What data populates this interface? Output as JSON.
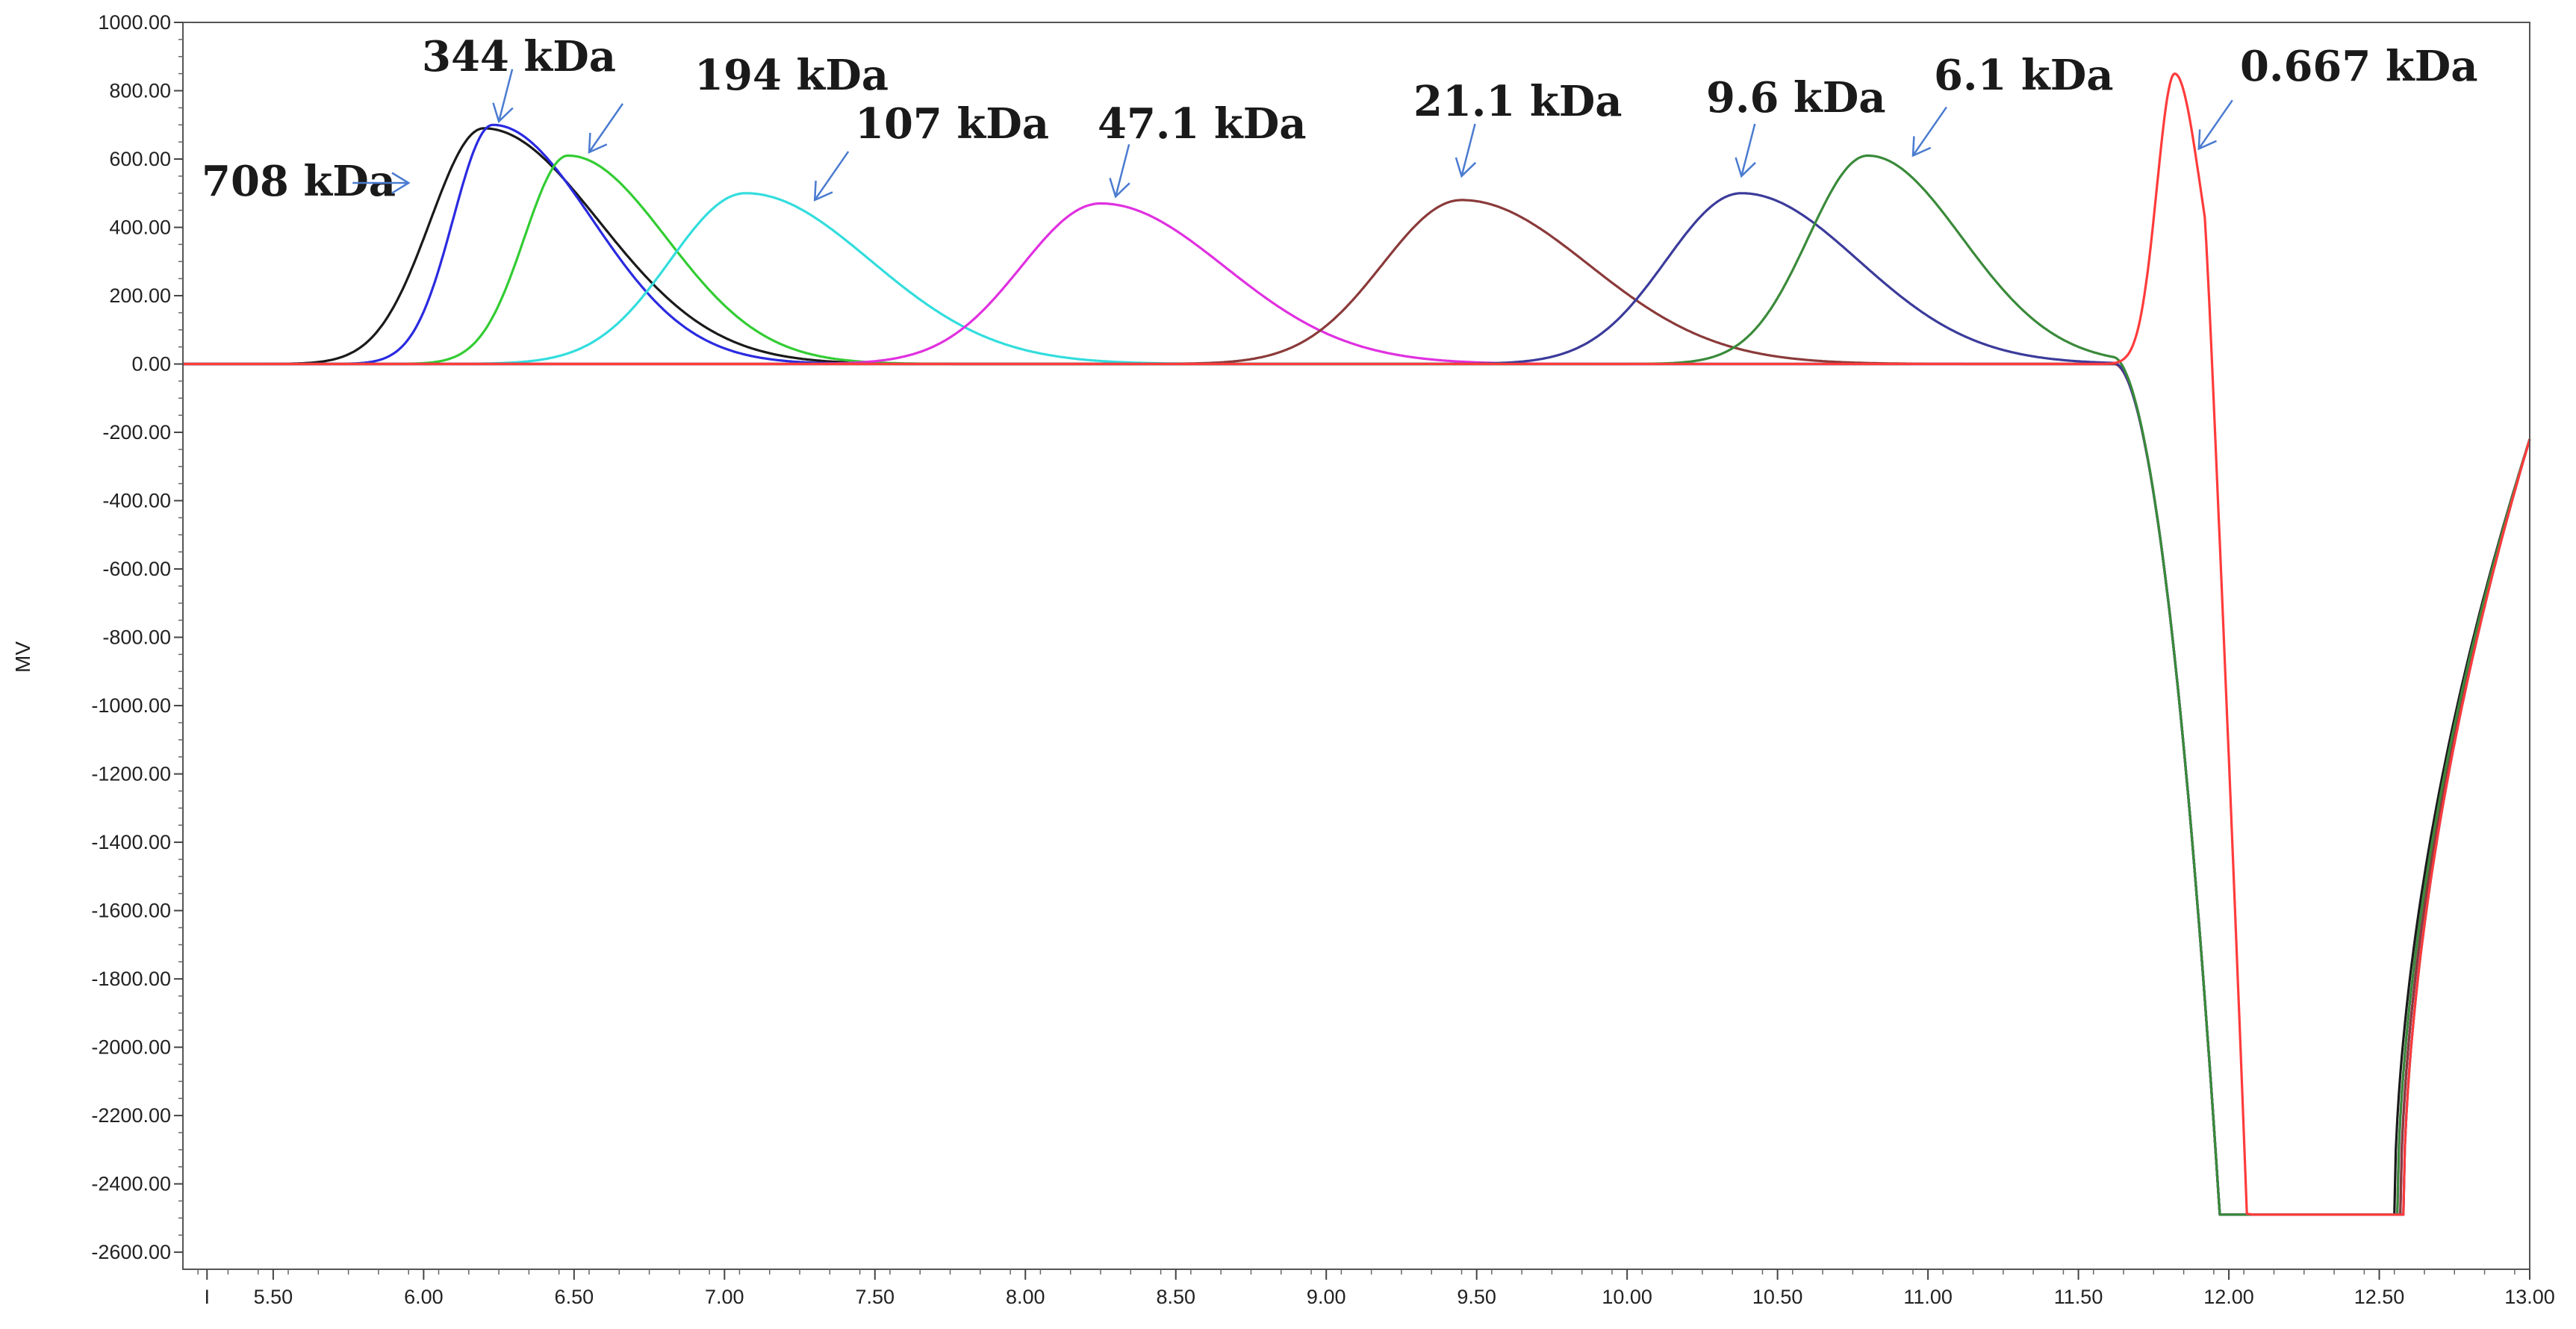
{
  "chart_data": {
    "type": "line",
    "title": "",
    "xlabel": "",
    "ylabel": "MV",
    "xlim": [
      5.2,
      13.0
    ],
    "ylim": [
      -2650,
      1000
    ],
    "grid": false,
    "legend": "none",
    "x_ticks": [
      {
        "value": 5.28,
        "label": "I"
      },
      {
        "value": 5.5,
        "label": "5.50"
      },
      {
        "value": 6.0,
        "label": "6.00"
      },
      {
        "value": 6.5,
        "label": "6.50"
      },
      {
        "value": 7.0,
        "label": "7.00"
      },
      {
        "value": 7.5,
        "label": "7.50"
      },
      {
        "value": 8.0,
        "label": "8.00"
      },
      {
        "value": 8.5,
        "label": "8.50"
      },
      {
        "value": 9.0,
        "label": "9.00"
      },
      {
        "value": 9.5,
        "label": "9.50"
      },
      {
        "value": 10.0,
        "label": "10.00"
      },
      {
        "value": 10.5,
        "label": "10.50"
      },
      {
        "value": 11.0,
        "label": "11.00"
      },
      {
        "value": 11.5,
        "label": "11.50"
      },
      {
        "value": 12.0,
        "label": "12.00"
      },
      {
        "value": 12.5,
        "label": "12.50"
      },
      {
        "value": 13.0,
        "label": "13.00"
      }
    ],
    "y_ticks": [
      {
        "value": 1000,
        "label": "1000.00"
      },
      {
        "value": 800,
        "label": "800.00"
      },
      {
        "value": 600,
        "label": "600.00"
      },
      {
        "value": 400,
        "label": "400.00"
      },
      {
        "value": 200,
        "label": "200.00"
      },
      {
        "value": 0,
        "label": "0.00"
      },
      {
        "value": -200,
        "label": "-200.00"
      },
      {
        "value": -400,
        "label": "-400.00"
      },
      {
        "value": -600,
        "label": "-600.00"
      },
      {
        "value": -800,
        "label": "-800.00"
      },
      {
        "value": -1000,
        "label": "-1000.00"
      },
      {
        "value": -1200,
        "label": "-1200.00"
      },
      {
        "value": -1400,
        "label": "-1400.00"
      },
      {
        "value": -1600,
        "label": "-1600.00"
      },
      {
        "value": -1800,
        "label": "-1800.00"
      },
      {
        "value": -2000,
        "label": "-2000.00"
      },
      {
        "value": -2200,
        "label": "-2200.00"
      },
      {
        "value": -2400,
        "label": "-2400.00"
      },
      {
        "value": -2600,
        "label": "-2600.00"
      }
    ],
    "series": [
      {
        "label": "708 kDa",
        "color": "#1a1a1a",
        "peak_x": 6.2,
        "peak_y": 690,
        "width": 0.27,
        "tail": 0.62,
        "dip": true,
        "dip_end": 12.55
      },
      {
        "label": "344 kDa",
        "color": "#2a2ae0",
        "peak_x": 6.23,
        "peak_y": 700,
        "width": 0.2,
        "tail": 0.6,
        "dip": true,
        "dip_end": 12.57
      },
      {
        "label": "194 kDa",
        "color": "#33cc33",
        "peak_x": 6.48,
        "peak_y": 610,
        "width": 0.22,
        "tail": 0.55,
        "dip": true,
        "dip_end": 12.56
      },
      {
        "label": "107 kDa",
        "color": "#33dddd",
        "peak_x": 7.07,
        "peak_y": 500,
        "width": 0.38,
        "tail": 0.5,
        "dip": true,
        "dip_end": 12.58
      },
      {
        "label": "47.1 kDa",
        "color": "#e030e0",
        "peak_x": 8.25,
        "peak_y": 470,
        "width": 0.4,
        "tail": 0.45,
        "dip": true,
        "dip_end": 12.56
      },
      {
        "label": "21.1 kDa",
        "color": "#8b3a3a",
        "peak_x": 9.45,
        "peak_y": 480,
        "width": 0.4,
        "tail": 0.48,
        "dip": true,
        "dip_end": 12.57
      },
      {
        "label": "9.6 kDa",
        "color": "#3b3b9b",
        "peak_x": 10.38,
        "peak_y": 500,
        "width": 0.38,
        "tail": 0.42,
        "dip": true,
        "dip_end": 12.58
      },
      {
        "label": "6.1 kDa",
        "color": "#3a8a3a",
        "peak_x": 10.8,
        "peak_y": 610,
        "width": 0.3,
        "tail": 0.35,
        "dip": true,
        "dip_end": 12.56
      },
      {
        "label": "0.667 kDa",
        "color": "#ff3b3b",
        "peak_x": 11.82,
        "peak_y": 850,
        "width": 0.09,
        "tail": 0.08,
        "dip": true,
        "dip_end": 12.58
      }
    ],
    "baseline_dip": {
      "start": 11.62,
      "floor": -2490,
      "floor_start": 11.97,
      "end": 13.0,
      "end_value": -220
    },
    "annotations": [
      {
        "text": "708 kDa",
        "target_x": 5.95,
        "target_y": 530,
        "arrow": "right"
      },
      {
        "text": "344 kDa",
        "target_x": 6.25,
        "target_y": 710,
        "arrow": "down"
      },
      {
        "text": "194 kDa",
        "target_x": 6.55,
        "target_y": 620,
        "arrow": "down-left"
      },
      {
        "text": "107 kDa",
        "target_x": 7.3,
        "target_y": 480,
        "arrow": "down-left"
      },
      {
        "text": "47.1 kDa",
        "target_x": 8.3,
        "target_y": 490,
        "arrow": "down"
      },
      {
        "text": "21.1  kDa",
        "target_x": 9.45,
        "target_y": 550,
        "arrow": "down"
      },
      {
        "text": "9.6 kDa",
        "target_x": 10.38,
        "target_y": 550,
        "arrow": "down"
      },
      {
        "text": "6.1 kDa",
        "target_x": 10.95,
        "target_y": 610,
        "arrow": "down-left"
      },
      {
        "text": "0.667 kDa",
        "target_x": 11.9,
        "target_y": 630,
        "arrow": "down-left"
      }
    ]
  }
}
